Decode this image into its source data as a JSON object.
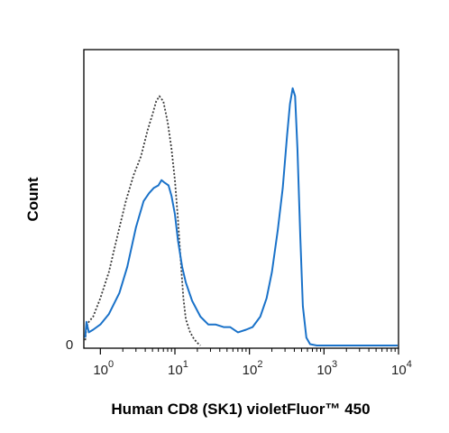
{
  "chart_data": {
    "type": "line",
    "title": "",
    "xlabel": "Human CD8 (SK1) violetFluor™ 450",
    "ylabel": "Count",
    "x_scale": "log",
    "xlim": [
      0.6,
      10000
    ],
    "ylim": [
      0,
      100
    ],
    "x_ticks": [
      {
        "base": "10",
        "exp": "0",
        "value": 1
      },
      {
        "base": "10",
        "exp": "1",
        "value": 10
      },
      {
        "base": "10",
        "exp": "2",
        "value": 100
      },
      {
        "base": "10",
        "exp": "3",
        "value": 1000
      },
      {
        "base": "10",
        "exp": "4",
        "value": 10000
      }
    ],
    "y_ticks": [
      {
        "label": "0",
        "value": 0
      }
    ],
    "grid": false,
    "series": [
      {
        "style": "dotted",
        "color": "#3a3a3a",
        "points": [
          [
            0.62,
            2
          ],
          [
            0.65,
            7
          ],
          [
            0.7,
            9
          ],
          [
            0.8,
            11
          ],
          [
            1.0,
            18
          ],
          [
            1.3,
            28
          ],
          [
            1.7,
            42
          ],
          [
            2.2,
            55
          ],
          [
            2.8,
            65
          ],
          [
            3.5,
            72
          ],
          [
            4.3,
            82
          ],
          [
            5.0,
            88
          ],
          [
            5.6,
            93
          ],
          [
            6.2,
            95
          ],
          [
            7.0,
            93
          ],
          [
            8.0,
            85
          ],
          [
            9.0,
            75
          ],
          [
            10.0,
            63
          ],
          [
            11.0,
            48
          ],
          [
            12.0,
            32
          ],
          [
            13.0,
            18
          ],
          [
            14.0,
            10
          ],
          [
            16.0,
            5
          ],
          [
            18.0,
            2.5
          ],
          [
            20.0,
            1
          ],
          [
            22.0,
            0
          ]
        ]
      },
      {
        "style": "solid",
        "color": "#1a72c9",
        "points": [
          [
            0.62,
            3
          ],
          [
            0.65,
            9
          ],
          [
            0.7,
            5
          ],
          [
            0.8,
            6
          ],
          [
            1.0,
            8
          ],
          [
            1.3,
            12
          ],
          [
            1.8,
            20
          ],
          [
            2.3,
            30
          ],
          [
            3.0,
            45
          ],
          [
            3.8,
            55
          ],
          [
            4.5,
            58
          ],
          [
            5.2,
            60
          ],
          [
            6.0,
            61
          ],
          [
            6.6,
            63
          ],
          [
            7.3,
            62
          ],
          [
            8.2,
            61
          ],
          [
            9.0,
            57
          ],
          [
            10.0,
            50
          ],
          [
            11.0,
            40
          ],
          [
            12.5,
            30
          ],
          [
            14.0,
            24
          ],
          [
            17.0,
            17
          ],
          [
            22.0,
            11
          ],
          [
            28.0,
            8
          ],
          [
            35.0,
            8
          ],
          [
            45.0,
            7
          ],
          [
            55.0,
            7
          ],
          [
            70.0,
            5
          ],
          [
            90.0,
            6
          ],
          [
            110.0,
            7
          ],
          [
            140.0,
            11
          ],
          [
            170.0,
            18
          ],
          [
            200.0,
            28
          ],
          [
            240.0,
            44
          ],
          [
            280.0,
            60
          ],
          [
            320.0,
            80
          ],
          [
            350.0,
            92
          ],
          [
            380.0,
            98
          ],
          [
            410.0,
            95
          ],
          [
            440.0,
            75
          ],
          [
            480.0,
            42
          ],
          [
            520.0,
            15
          ],
          [
            580.0,
            3
          ],
          [
            650.0,
            0.5
          ],
          [
            800.0,
            0
          ],
          [
            10000.0,
            0
          ]
        ]
      }
    ]
  }
}
